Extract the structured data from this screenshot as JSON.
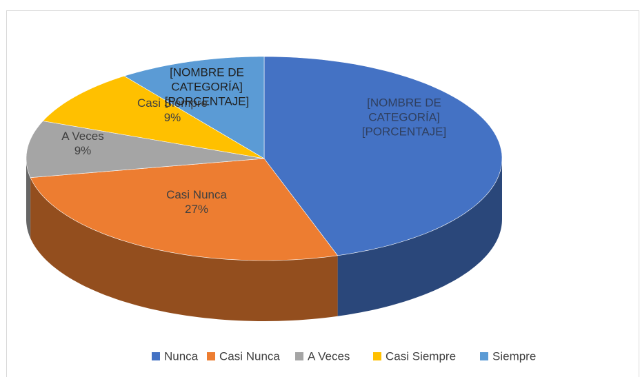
{
  "chart_data": {
    "type": "pie3d",
    "categories": [
      "Nunca",
      "Casi Nunca",
      "A Veces",
      "Casi Siempre",
      "Siempre"
    ],
    "values": [
      45,
      27,
      9,
      9,
      10
    ],
    "value_labels": [
      null,
      "27%",
      "9%",
      "9%",
      null
    ],
    "placeholder_label": {
      "name": "[NOMBRE DE CATEGORÍA]",
      "value": "[PORCENTAJE]"
    },
    "colors": [
      "#4472c4",
      "#ed7d31",
      "#a5a5a5",
      "#ffc000",
      "#5b9bd5"
    ],
    "legend": "bottom"
  }
}
